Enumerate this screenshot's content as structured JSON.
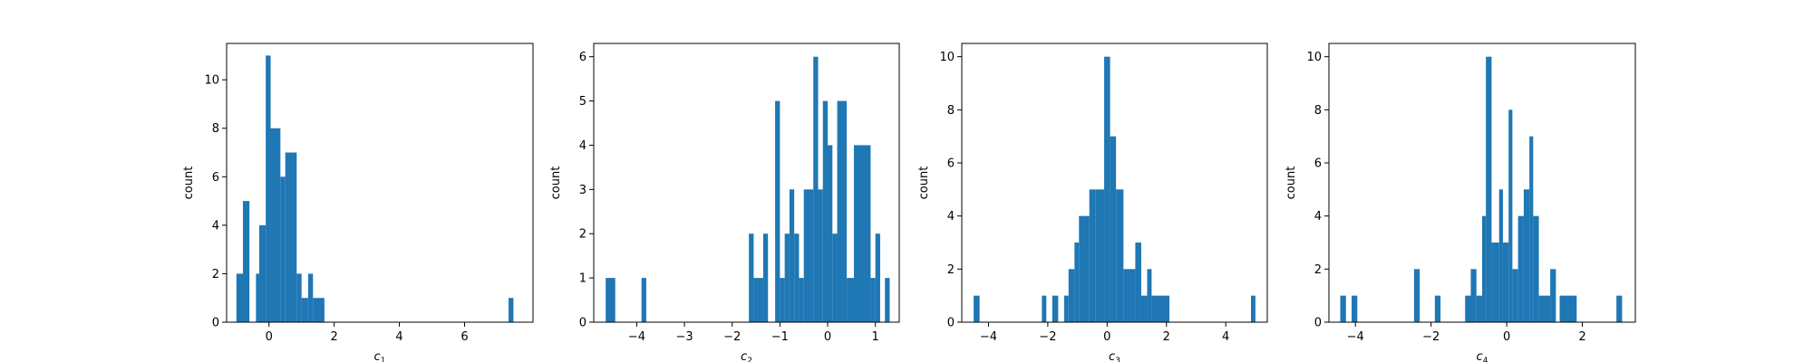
{
  "chart_data": [
    {
      "type": "bar",
      "title": "",
      "xlabel": "c",
      "xlabel_sub": "1",
      "ylabel": "count",
      "xlim": [
        -1.3,
        8.1
      ],
      "ylim": [
        0,
        11.5
      ],
      "xticks": [
        0,
        2,
        4,
        6
      ],
      "yticks": [
        0,
        2,
        4,
        6,
        8,
        10
      ],
      "grid": false,
      "bar_color": "#1f77b4",
      "bins": [
        {
          "x0": -1.0,
          "x1": -0.8,
          "count": 2
        },
        {
          "x0": -0.8,
          "x1": -0.6,
          "count": 5
        },
        {
          "x0": -0.4,
          "x1": -0.3,
          "count": 2
        },
        {
          "x0": -0.3,
          "x1": -0.1,
          "count": 4
        },
        {
          "x0": -0.1,
          "x1": 0.05,
          "count": 11
        },
        {
          "x0": 0.05,
          "x1": 0.35,
          "count": 8
        },
        {
          "x0": 0.35,
          "x1": 0.5,
          "count": 6
        },
        {
          "x0": 0.5,
          "x1": 0.85,
          "count": 7
        },
        {
          "x0": 0.85,
          "x1": 1.0,
          "count": 2
        },
        {
          "x0": 1.0,
          "x1": 1.2,
          "count": 1
        },
        {
          "x0": 1.2,
          "x1": 1.35,
          "count": 2
        },
        {
          "x0": 1.35,
          "x1": 1.7,
          "count": 1
        },
        {
          "x0": 7.35,
          "x1": 7.5,
          "count": 1
        }
      ]
    },
    {
      "type": "bar",
      "title": "",
      "xlabel": "c",
      "xlabel_sub": "2",
      "ylabel": "count",
      "xlim": [
        -4.9,
        1.5
      ],
      "ylim": [
        0,
        6.3
      ],
      "xticks": [
        -4,
        -3,
        -2,
        -1,
        0,
        1
      ],
      "yticks": [
        0,
        1,
        2,
        3,
        4,
        5,
        6
      ],
      "grid": false,
      "bar_color": "#1f77b4",
      "bins": [
        {
          "x0": -4.65,
          "x1": -4.45,
          "count": 1
        },
        {
          "x0": -3.9,
          "x1": -3.8,
          "count": 1
        },
        {
          "x0": -1.65,
          "x1": -1.55,
          "count": 2
        },
        {
          "x0": -1.55,
          "x1": -1.35,
          "count": 1
        },
        {
          "x0": -1.35,
          "x1": -1.25,
          "count": 2
        },
        {
          "x0": -1.1,
          "x1": -1.0,
          "count": 5
        },
        {
          "x0": -1.0,
          "x1": -0.9,
          "count": 1
        },
        {
          "x0": -0.9,
          "x1": -0.8,
          "count": 2
        },
        {
          "x0": -0.8,
          "x1": -0.7,
          "count": 3
        },
        {
          "x0": -0.7,
          "x1": -0.6,
          "count": 2
        },
        {
          "x0": -0.6,
          "x1": -0.5,
          "count": 1
        },
        {
          "x0": -0.5,
          "x1": -0.3,
          "count": 3
        },
        {
          "x0": -0.3,
          "x1": -0.2,
          "count": 6
        },
        {
          "x0": -0.2,
          "x1": -0.1,
          "count": 3
        },
        {
          "x0": -0.1,
          "x1": 0.0,
          "count": 5
        },
        {
          "x0": 0.0,
          "x1": 0.1,
          "count": 4
        },
        {
          "x0": 0.1,
          "x1": 0.2,
          "count": 2
        },
        {
          "x0": 0.2,
          "x1": 0.4,
          "count": 5
        },
        {
          "x0": 0.4,
          "x1": 0.55,
          "count": 1
        },
        {
          "x0": 0.55,
          "x1": 0.9,
          "count": 4
        },
        {
          "x0": 0.9,
          "x1": 1.0,
          "count": 1
        },
        {
          "x0": 1.0,
          "x1": 1.1,
          "count": 2
        },
        {
          "x0": 1.2,
          "x1": 1.3,
          "count": 1
        }
      ]
    },
    {
      "type": "bar",
      "title": "",
      "xlabel": "c",
      "xlabel_sub": "3",
      "ylabel": "count",
      "xlim": [
        -4.9,
        5.4
      ],
      "ylim": [
        0,
        10.5
      ],
      "xticks": [
        -4,
        -2,
        0,
        2,
        4
      ],
      "yticks": [
        0,
        2,
        4,
        6,
        8,
        10
      ],
      "grid": false,
      "bar_color": "#1f77b4",
      "bins": [
        {
          "x0": -4.5,
          "x1": -4.3,
          "count": 1
        },
        {
          "x0": -2.2,
          "x1": -2.05,
          "count": 1
        },
        {
          "x0": -1.85,
          "x1": -1.65,
          "count": 1
        },
        {
          "x0": -1.45,
          "x1": -1.3,
          "count": 1
        },
        {
          "x0": -1.3,
          "x1": -1.1,
          "count": 2
        },
        {
          "x0": -1.1,
          "x1": -0.95,
          "count": 3
        },
        {
          "x0": -0.95,
          "x1": -0.6,
          "count": 4
        },
        {
          "x0": -0.6,
          "x1": -0.4,
          "count": 5
        },
        {
          "x0": -0.4,
          "x1": -0.1,
          "count": 5
        },
        {
          "x0": -0.1,
          "x1": 0.1,
          "count": 10
        },
        {
          "x0": 0.1,
          "x1": 0.3,
          "count": 7
        },
        {
          "x0": 0.3,
          "x1": 0.55,
          "count": 5
        },
        {
          "x0": 0.55,
          "x1": 0.95,
          "count": 2
        },
        {
          "x0": 0.95,
          "x1": 1.15,
          "count": 3
        },
        {
          "x0": 1.15,
          "x1": 1.35,
          "count": 1
        },
        {
          "x0": 1.35,
          "x1": 1.5,
          "count": 2
        },
        {
          "x0": 1.5,
          "x1": 2.1,
          "count": 1
        },
        {
          "x0": 4.85,
          "x1": 5.0,
          "count": 1
        }
      ]
    },
    {
      "type": "bar",
      "title": "",
      "xlabel": "c",
      "xlabel_sub": "4",
      "ylabel": "count",
      "xlim": [
        -4.7,
        3.4
      ],
      "ylim": [
        0,
        10.5
      ],
      "xticks": [
        -4,
        -2,
        0,
        2
      ],
      "yticks": [
        0,
        2,
        4,
        6,
        8,
        10
      ],
      "grid": false,
      "bar_color": "#1f77b4",
      "bins": [
        {
          "x0": -4.4,
          "x1": -4.25,
          "count": 1
        },
        {
          "x0": -4.1,
          "x1": -3.95,
          "count": 1
        },
        {
          "x0": -2.45,
          "x1": -2.3,
          "count": 2
        },
        {
          "x0": -1.9,
          "x1": -1.75,
          "count": 1
        },
        {
          "x0": -1.1,
          "x1": -0.95,
          "count": 1
        },
        {
          "x0": -0.95,
          "x1": -0.8,
          "count": 2
        },
        {
          "x0": -0.8,
          "x1": -0.65,
          "count": 1
        },
        {
          "x0": -0.65,
          "x1": -0.55,
          "count": 4
        },
        {
          "x0": -0.55,
          "x1": -0.4,
          "count": 10
        },
        {
          "x0": -0.4,
          "x1": -0.2,
          "count": 3
        },
        {
          "x0": -0.2,
          "x1": -0.1,
          "count": 5
        },
        {
          "x0": -0.1,
          "x1": 0.05,
          "count": 3
        },
        {
          "x0": 0.05,
          "x1": 0.15,
          "count": 8
        },
        {
          "x0": 0.15,
          "x1": 0.3,
          "count": 2
        },
        {
          "x0": 0.3,
          "x1": 0.45,
          "count": 4
        },
        {
          "x0": 0.45,
          "x1": 0.6,
          "count": 5
        },
        {
          "x0": 0.6,
          "x1": 0.7,
          "count": 7
        },
        {
          "x0": 0.7,
          "x1": 0.85,
          "count": 4
        },
        {
          "x0": 0.85,
          "x1": 1.15,
          "count": 1
        },
        {
          "x0": 1.15,
          "x1": 1.3,
          "count": 2
        },
        {
          "x0": 1.4,
          "x1": 1.85,
          "count": 1
        },
        {
          "x0": 2.9,
          "x1": 3.05,
          "count": 1
        }
      ]
    }
  ]
}
